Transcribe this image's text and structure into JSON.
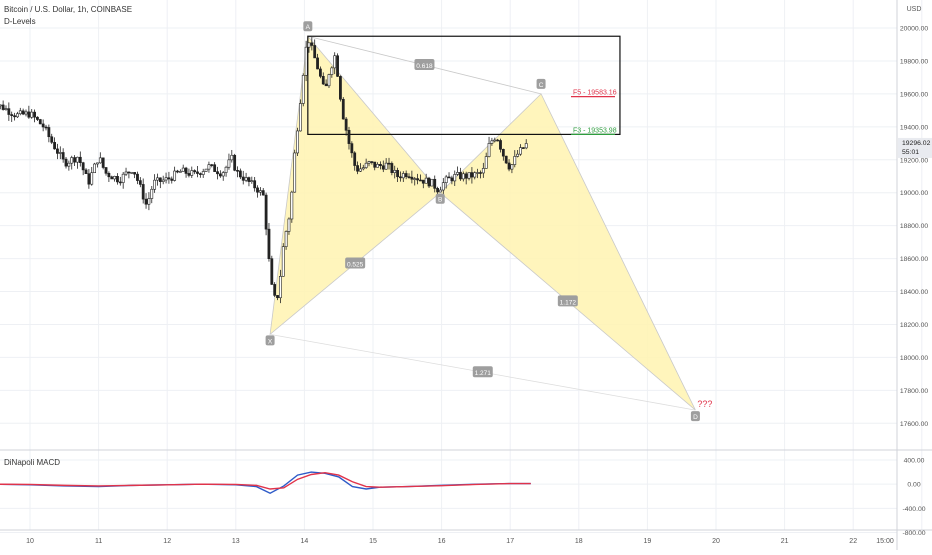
{
  "header": {
    "symbol_title": "Bitcoin / U.S. Dollar, 1h, COINBASE",
    "indicator_name": "D-Levels"
  },
  "macd_panel": {
    "title": "DiNapoli MACD"
  },
  "colors": {
    "grid": "#eef0f4",
    "candle": "#222222",
    "pattern_fill": "#fff3b0",
    "pattern_line": "#c9c9c9",
    "label_bg": "#9e9e9e",
    "f5": "#e0334a",
    "f3": "#2e9e3e",
    "macd_line": "#2d5ac8",
    "signal_line": "#e0334a",
    "price_tag_bg": "#e9ebf0"
  },
  "chart_data": [
    {
      "type": "candlestick",
      "title": "Bitcoin / U.S. Dollar, 1h, COINBASE",
      "ylabel": "USD",
      "ylim": [
        17400,
        20200
      ],
      "y_ticks": [
        17600,
        17800,
        18000,
        18200,
        18400,
        18600,
        18800,
        19000,
        19200,
        19400,
        19600,
        19800,
        20000
      ],
      "y_tick_labels": [
        "17600.00",
        "17800.00",
        "18000.00",
        "18200.00",
        "18400.00",
        "18600.00",
        "18800.00",
        "19000.00",
        "19200.00",
        "19400.00",
        "19600.00",
        "19800.00",
        "20000.00"
      ],
      "x_tick_labels": [
        "10",
        "11",
        "12",
        "13",
        "14",
        "15",
        "16",
        "17",
        "18",
        "19",
        "20",
        "21",
        "22",
        "15:00"
      ],
      "current_price": "19296.02",
      "countdown": "55:01",
      "close_path": [
        [
          9.4,
          19550
        ],
        [
          9.6,
          19520
        ],
        [
          9.8,
          19470
        ],
        [
          10.0,
          19480
        ],
        [
          10.2,
          19400
        ],
        [
          10.3,
          19320
        ],
        [
          10.5,
          19180
        ],
        [
          10.7,
          19220
        ],
        [
          10.85,
          19060
        ],
        [
          11.0,
          19220
        ],
        [
          11.1,
          19120
        ],
        [
          11.3,
          19080
        ],
        [
          11.5,
          19150
        ],
        [
          11.6,
          19040
        ],
        [
          11.7,
          18920
        ],
        [
          11.8,
          19060
        ],
        [
          12.0,
          19080
        ],
        [
          12.2,
          19130
        ],
        [
          12.4,
          19110
        ],
        [
          12.6,
          19160
        ],
        [
          12.8,
          19120
        ],
        [
          12.95,
          19210
        ],
        [
          13.0,
          19130
        ],
        [
          13.2,
          19060
        ],
        [
          13.3,
          19030
        ],
        [
          13.4,
          18980
        ],
        [
          13.45,
          18760
        ],
        [
          13.5,
          18500
        ],
        [
          13.55,
          18350
        ],
        [
          13.62,
          18380
        ],
        [
          13.7,
          18700
        ],
        [
          13.8,
          18900
        ],
        [
          13.85,
          19200
        ],
        [
          13.9,
          19400
        ],
        [
          14.0,
          19800
        ],
        [
          14.05,
          19950
        ],
        [
          14.1,
          19880
        ],
        [
          14.2,
          19750
        ],
        [
          14.3,
          19600
        ],
        [
          14.35,
          19720
        ],
        [
          14.45,
          19840
        ],
        [
          14.55,
          19500
        ],
        [
          14.65,
          19300
        ],
        [
          14.75,
          19140
        ],
        [
          14.85,
          19150
        ],
        [
          14.95,
          19180
        ],
        [
          15.05,
          19160
        ],
        [
          15.2,
          19170
        ],
        [
          15.35,
          19100
        ],
        [
          15.5,
          19120
        ],
        [
          15.7,
          19080
        ],
        [
          15.85,
          19060
        ],
        [
          15.95,
          19020
        ],
        [
          16.05,
          19070
        ],
        [
          16.2,
          19100
        ],
        [
          16.4,
          19100
        ],
        [
          16.6,
          19120
        ],
        [
          16.7,
          19300
        ],
        [
          16.8,
          19350
        ],
        [
          16.9,
          19230
        ],
        [
          17.0,
          19150
        ],
        [
          17.1,
          19230
        ],
        [
          17.25,
          19300
        ]
      ],
      "harmonic_pattern": {
        "points": [
          {
            "name": "X",
            "x": 13.5,
            "y": 18140
          },
          {
            "name": "A",
            "x": 14.05,
            "y": 19950
          },
          {
            "name": "B",
            "x": 15.98,
            "y": 19000
          },
          {
            "name": "C",
            "x": 17.45,
            "y": 19600
          },
          {
            "name": "D",
            "x": 19.7,
            "y": 17680
          }
        ],
        "ratios": [
          {
            "label": "0.618",
            "between": "X-B"
          },
          {
            "label": "0.525",
            "between": "X-B"
          },
          {
            "label": "1.172",
            "between": "B-D"
          },
          {
            "label": "1.271",
            "between": "X-D"
          }
        ],
        "d_annotation": "???"
      },
      "levels": [
        {
          "label": "F5 - 19583.16",
          "value": 19583.16
        },
        {
          "label": "F3 - 19353.98",
          "value": 19353.98
        }
      ],
      "box": {
        "x_from": 14.05,
        "x_to": 18.6,
        "y_from": 19353.98,
        "y_to": 19950
      }
    },
    {
      "type": "line",
      "title": "DiNapoli MACD",
      "ylim": [
        -800,
        400
      ],
      "y_ticks": [
        400,
        0,
        -400,
        -800
      ],
      "y_tick_labels": [
        "400.00",
        "0.00",
        "-400.00",
        "-800.00"
      ],
      "series": [
        {
          "name": "",
          "color": "macd_line",
          "points": [
            [
              9.4,
              0
            ],
            [
              10,
              -10
            ],
            [
              10.5,
              -30
            ],
            [
              11,
              -40
            ],
            [
              11.5,
              -20
            ],
            [
              12,
              -10
            ],
            [
              12.5,
              0
            ],
            [
              13,
              -10
            ],
            [
              13.3,
              -40
            ],
            [
              13.5,
              -150
            ],
            [
              13.7,
              -30
            ],
            [
              13.9,
              150
            ],
            [
              14.1,
              200
            ],
            [
              14.3,
              180
            ],
            [
              14.5,
              120
            ],
            [
              14.7,
              -40
            ],
            [
              14.9,
              -80
            ],
            [
              15.1,
              -50
            ],
            [
              15.5,
              -40
            ],
            [
              16,
              -20
            ],
            [
              16.5,
              0
            ],
            [
              17,
              10
            ],
            [
              17.3,
              10
            ]
          ]
        },
        {
          "name": "",
          "color": "signal_line",
          "points": [
            [
              9.4,
              0
            ],
            [
              10,
              -5
            ],
            [
              10.5,
              -20
            ],
            [
              11,
              -30
            ],
            [
              11.5,
              -20
            ],
            [
              12,
              -10
            ],
            [
              12.5,
              0
            ],
            [
              13,
              -5
            ],
            [
              13.3,
              -20
            ],
            [
              13.5,
              -80
            ],
            [
              13.7,
              -60
            ],
            [
              13.9,
              80
            ],
            [
              14.1,
              160
            ],
            [
              14.3,
              190
            ],
            [
              14.5,
              150
            ],
            [
              14.7,
              40
            ],
            [
              14.9,
              -40
            ],
            [
              15.1,
              -50
            ],
            [
              15.5,
              -40
            ],
            [
              16,
              -25
            ],
            [
              16.5,
              -5
            ],
            [
              17,
              10
            ],
            [
              17.3,
              10
            ]
          ]
        }
      ]
    }
  ]
}
